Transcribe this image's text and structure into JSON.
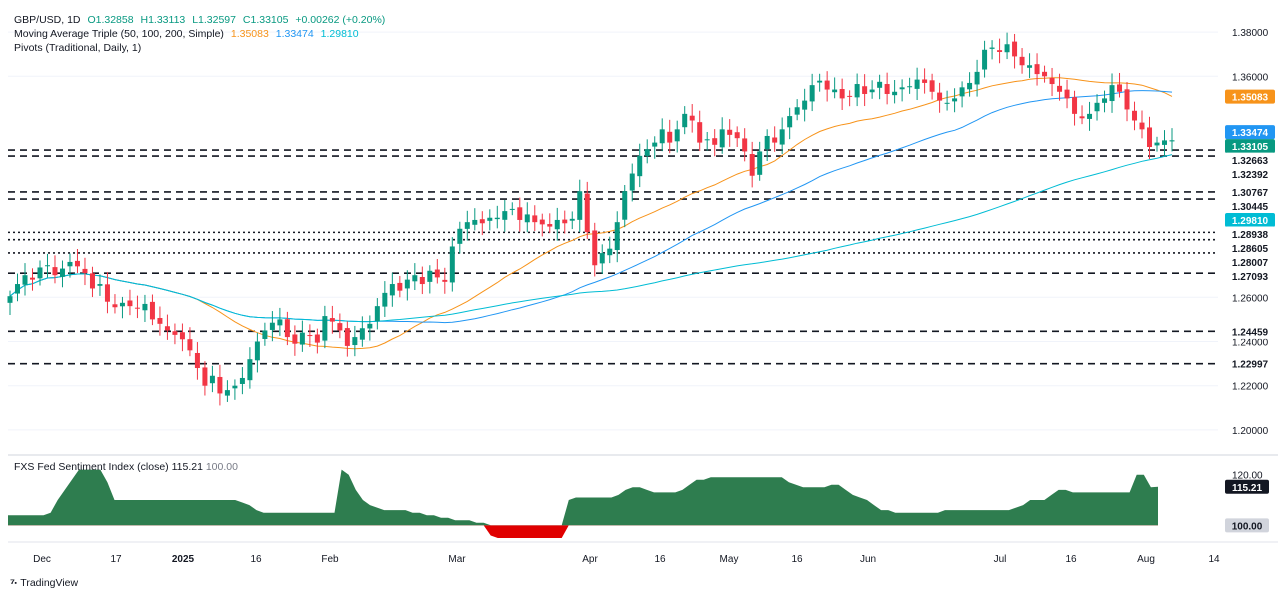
{
  "legend": {
    "symbol": "GBP/USD, 1D",
    "o": "O1.32858",
    "h": "H1.33113",
    "l": "L1.32597",
    "c": "C1.33105",
    "chg": "+0.00262 (+0.20%)",
    "ma_label": "Moving Average Triple (50, 100, 200, Simple)",
    "ma50": "1.35083",
    "ma100": "1.33474",
    "ma200": "1.29810",
    "pivots_label": "Pivots (Traditional, Daily, 1)"
  },
  "sub_legend": {
    "label": "FXS Fed Sentiment Index (close)",
    "v1": "115.21",
    "v2": "100.00"
  },
  "brand": "TradingView",
  "colors": {
    "up": "#089981",
    "down": "#f23645",
    "ma50": "#f7931a",
    "ma100": "#2196f3",
    "ma200": "#00bcd4",
    "index_fill": "#2e7d4f",
    "index_neg": "#e00000"
  },
  "chart_data": [
    {
      "type": "candlestick",
      "ylim": [
        1.19,
        1.39
      ],
      "yticks": [
        "1.38000",
        "1.36000",
        "1.26000",
        "1.24000",
        "1.22000",
        "1.20000"
      ],
      "price_badges": [
        {
          "label": "1.35083",
          "value": 1.35083,
          "bg": "#f7931a",
          "fg": "#ffffff"
        },
        {
          "label": "1.33474",
          "value": 1.33474,
          "bg": "#2196f3",
          "fg": "#ffffff"
        },
        {
          "label": "1.33105",
          "value": 1.33105,
          "bg": "#089981",
          "fg": "#ffffff"
        },
        {
          "label": "1.32663",
          "value": 1.32663,
          "bg": "#ffffff",
          "fg": "#131722"
        },
        {
          "label": "1.32392",
          "value": 1.32392,
          "bg": "#ffffff",
          "fg": "#131722"
        },
        {
          "label": "1.30767",
          "value": 1.30767,
          "bg": "#ffffff",
          "fg": "#131722"
        },
        {
          "label": "1.30445",
          "value": 1.30445,
          "bg": "#ffffff",
          "fg": "#131722"
        },
        {
          "label": "1.29810",
          "value": 1.2981,
          "bg": "#00bcd4",
          "fg": "#ffffff"
        },
        {
          "label": "1.28938",
          "value": 1.28938,
          "bg": "#ffffff",
          "fg": "#131722"
        },
        {
          "label": "1.28605",
          "value": 1.28605,
          "bg": "#ffffff",
          "fg": "#131722"
        },
        {
          "label": "1.28007",
          "value": 1.28007,
          "bg": "#ffffff",
          "fg": "#131722"
        },
        {
          "label": "1.27093",
          "value": 1.27093,
          "bg": "#ffffff",
          "fg": "#131722"
        },
        {
          "label": "1.24459",
          "value": 1.24459,
          "bg": "#ffffff",
          "fg": "#131722"
        },
        {
          "label": "1.22997",
          "value": 1.22997,
          "bg": "#ffffff",
          "fg": "#131722"
        }
      ],
      "pivot_lines": [
        {
          "value": 1.32663,
          "style": "dashed"
        },
        {
          "value": 1.32392,
          "style": "dashed"
        },
        {
          "value": 1.30767,
          "style": "dashed"
        },
        {
          "value": 1.30445,
          "style": "dashed"
        },
        {
          "value": 1.28938,
          "style": "dotted"
        },
        {
          "value": 1.28605,
          "style": "dotted"
        },
        {
          "value": 1.28007,
          "style": "dotted"
        },
        {
          "value": 1.27093,
          "style": "dashed"
        },
        {
          "value": 1.24459,
          "style": "dashed"
        },
        {
          "value": 1.22997,
          "style": "dashed"
        }
      ],
      "xticks": [
        "Dec",
        "17",
        "2025",
        "16",
        "Feb",
        "Mar",
        "Apr",
        "16",
        "May",
        "16",
        "Jun",
        "Jul",
        "16",
        "Aug",
        "14"
      ],
      "close": [
        1.2605,
        1.266,
        1.27,
        1.268,
        1.2735,
        1.2745,
        1.27,
        1.273,
        1.276,
        1.274,
        1.271,
        1.264,
        1.266,
        1.258,
        1.2555,
        1.2575,
        1.256,
        1.255,
        1.257,
        1.25,
        1.248,
        1.245,
        1.243,
        1.241,
        1.236,
        1.228,
        1.22,
        1.2245,
        1.2165,
        1.218,
        1.22,
        1.2235,
        1.232,
        1.24,
        1.245,
        1.2485,
        1.25,
        1.242,
        1.239,
        1.244,
        1.2425,
        1.2395,
        1.2515,
        1.249,
        1.245,
        1.238,
        1.242,
        1.246,
        1.248,
        1.256,
        1.262,
        1.266,
        1.263,
        1.268,
        1.27,
        1.266,
        1.272,
        1.269,
        1.267,
        1.283,
        1.291,
        1.294,
        1.295,
        1.2935,
        1.296,
        1.296,
        1.299,
        1.3,
        1.295,
        1.2975,
        1.294,
        1.293,
        1.292,
        1.295,
        1.2935,
        1.2955,
        1.308,
        1.2895,
        1.2745,
        1.28,
        1.282,
        1.294,
        1.308,
        1.316,
        1.324,
        1.327,
        1.33,
        1.336,
        1.33,
        1.336,
        1.343,
        1.34,
        1.33,
        1.3315,
        1.329,
        1.336,
        1.3335,
        1.332,
        1.326,
        1.315,
        1.326,
        1.333,
        1.33,
        1.336,
        1.342,
        1.346,
        1.349,
        1.356,
        1.358,
        1.354,
        1.354,
        1.35,
        1.351,
        1.3565,
        1.352,
        1.354,
        1.3575,
        1.352,
        1.353,
        1.355,
        1.3555,
        1.3585,
        1.357,
        1.353,
        1.349,
        1.348,
        1.35,
        1.355,
        1.357,
        1.362,
        1.372,
        1.373,
        1.371,
        1.3745,
        1.369,
        1.365,
        1.365,
        1.361,
        1.36,
        1.3565,
        1.353,
        1.35,
        1.343,
        1.341,
        1.343,
        1.348,
        1.35,
        1.356,
        1.353,
        1.345,
        1.34,
        1.336,
        1.328,
        1.33,
        1.331,
        1.33105
      ]
    },
    {
      "type": "area",
      "title": "FXS Fed Sentiment Index (close)",
      "ylim": [
        95,
        125
      ],
      "yticks": [
        "120.00"
      ],
      "baseline": 100.0,
      "last": 115.21,
      "values": [
        104,
        104,
        104,
        104,
        104,
        104,
        105,
        110,
        114,
        118,
        122,
        122,
        122,
        122,
        117,
        110,
        110,
        110,
        110,
        110,
        110,
        110,
        110,
        110,
        110,
        110,
        110,
        110,
        110,
        110,
        110,
        110,
        110,
        109,
        108,
        106,
        105,
        105,
        105,
        105,
        105,
        105,
        105,
        105,
        105,
        105,
        105,
        122,
        120,
        114,
        110,
        108,
        107,
        106,
        106,
        106,
        106,
        105,
        105,
        104,
        104,
        103,
        103,
        102,
        102,
        102,
        101,
        101,
        96,
        95,
        95,
        95,
        95,
        95,
        95,
        95,
        95,
        95,
        95,
        110,
        111,
        111,
        111,
        111,
        111,
        111,
        112,
        114,
        115,
        115,
        114,
        113,
        113,
        113,
        113,
        114,
        116,
        118,
        118,
        119,
        119,
        119,
        119,
        119,
        119,
        119,
        119,
        119,
        119,
        119,
        117,
        116,
        115,
        115,
        115,
        115,
        116,
        116,
        114,
        112,
        111,
        110,
        108,
        106,
        106,
        105,
        105,
        105,
        105,
        105,
        105,
        105,
        106,
        106,
        106,
        106,
        106,
        106,
        106,
        106,
        106,
        106,
        107,
        108,
        110,
        110,
        110,
        112,
        114,
        114,
        113,
        113,
        113,
        113,
        113,
        113,
        113,
        113,
        113,
        120,
        120,
        115,
        115.21
      ]
    }
  ]
}
